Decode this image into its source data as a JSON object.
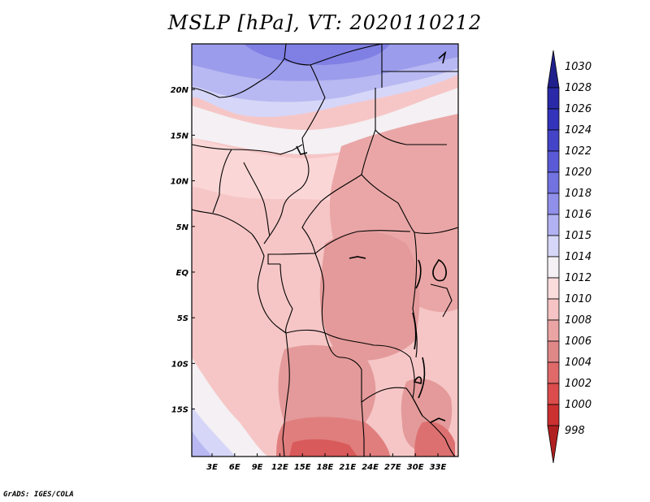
{
  "title": "MSLP [hPa], VT: 2020110212",
  "footer": "GrADS: IGES/COLA",
  "lat_ticks": [
    {
      "label": "20N",
      "value": 20
    },
    {
      "label": "15N",
      "value": 15
    },
    {
      "label": "10N",
      "value": 10
    },
    {
      "label": "5N",
      "value": 5
    },
    {
      "label": "EQ",
      "value": 0
    },
    {
      "label": "5S",
      "value": -5
    },
    {
      "label": "10S",
      "value": -10
    },
    {
      "label": "15S",
      "value": -15
    }
  ],
  "lon_ticks": [
    {
      "label": "3E",
      "value": 3
    },
    {
      "label": "6E",
      "value": 6
    },
    {
      "label": "9E",
      "value": 9
    },
    {
      "label": "12E",
      "value": 12
    },
    {
      "label": "15E",
      "value": 15
    },
    {
      "label": "18E",
      "value": 18
    },
    {
      "label": "21E",
      "value": 21
    },
    {
      "label": "24E",
      "value": 24
    },
    {
      "label": "27E",
      "value": 27
    },
    {
      "label": "30E",
      "value": 30
    },
    {
      "label": "33E",
      "value": 33
    }
  ],
  "colorbar": {
    "levels": [
      "1030",
      "1028",
      "1026",
      "1024",
      "1022",
      "1020",
      "1018",
      "1016",
      "1015",
      "1014",
      "1012",
      "1010",
      "1008",
      "1006",
      "1004",
      "1002",
      "1000",
      "998"
    ],
    "colors": [
      "#20208c",
      "#2a2aa8",
      "#3333bb",
      "#4444c8",
      "#5a5ad6",
      "#7272e0",
      "#9090ea",
      "#b2b2f2",
      "#d6d6f8",
      "#f4f0f4",
      "#fbdcdc",
      "#f6c4c4",
      "#eaa4a4",
      "#e08888",
      "#e06a6a",
      "#dc4c4c",
      "#cc3030",
      "#b02020"
    ]
  }
}
